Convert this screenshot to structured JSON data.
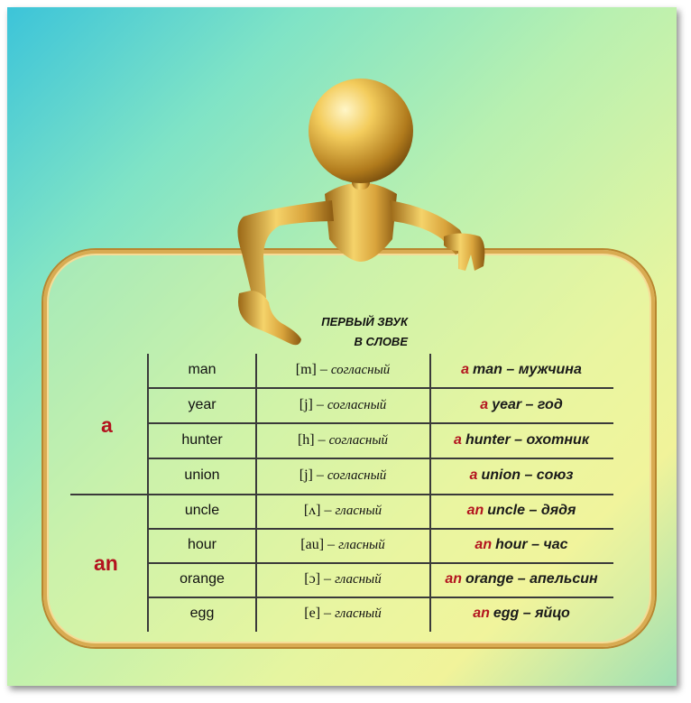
{
  "heading": {
    "line1": "ПЕРВЫЙ ЗВУК",
    "line2": "В СЛОВЕ"
  },
  "articles": {
    "a": "a",
    "an": "an"
  },
  "rows": [
    {
      "word": "man",
      "sound": "[m] – ",
      "type": "согласный",
      "ex_art": "a",
      "ex_rest": "man – мужчина"
    },
    {
      "word": "year",
      "sound": "[j] – ",
      "type": "согласный",
      "ex_art": "a",
      "ex_rest": "year – год"
    },
    {
      "word": "hunter",
      "sound": "[h] – ",
      "type": "согласный",
      "ex_art": "a",
      "ex_rest": "hunter – охотник"
    },
    {
      "word": "union",
      "sound": "[j] – ",
      "type": "согласный",
      "ex_art": "a",
      "ex_rest": "union – союз"
    },
    {
      "word": "uncle",
      "sound": "[ʌ] – ",
      "type": "гласный",
      "ex_art": "an",
      "ex_rest": "uncle – дядя"
    },
    {
      "word": "hour",
      "sound": "[au] – ",
      "type": "гласный",
      "ex_art": "an",
      "ex_rest": "hour – час"
    },
    {
      "word": "orange",
      "sound": "[ɔ] – ",
      "type": "гласный",
      "ex_art": "an",
      "ex_rest": "orange – апельсин"
    },
    {
      "word": "egg",
      "sound": "[e] – ",
      "type": "гласный",
      "ex_art": "an",
      "ex_rest": "egg – яйцо"
    }
  ],
  "colors": {
    "article": "#b3141f",
    "gold": "#d9ab52"
  }
}
